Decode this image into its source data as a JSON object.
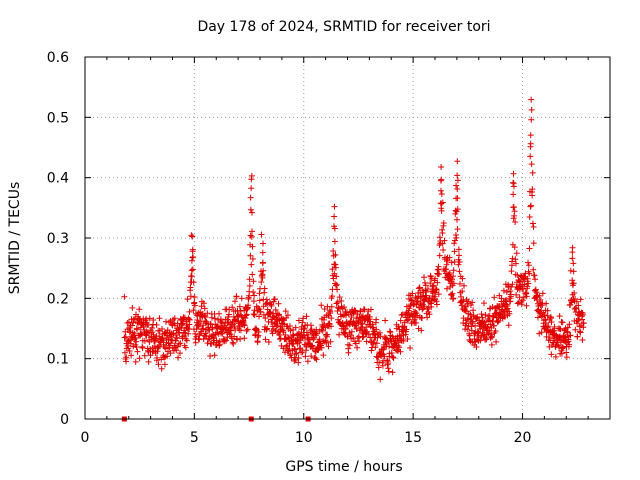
{
  "chart_data": {
    "type": "scatter",
    "title": "Day 178 of 2024, SRMTID for receiver tori",
    "xlabel": "GPS time / hours",
    "ylabel": "SRMTID / TECUs",
    "xlim": [
      0,
      24
    ],
    "ylim": [
      0,
      0.6
    ],
    "grid": true,
    "marker": "plus",
    "color": "#e00000",
    "x_ticks": [
      {
        "value": 0,
        "label": "0"
      },
      {
        "value": 5,
        "label": "5"
      },
      {
        "value": 10,
        "label": "10"
      },
      {
        "value": 15,
        "label": "15"
      },
      {
        "value": 20,
        "label": "20"
      }
    ],
    "y_ticks": [
      {
        "value": 0,
        "label": "0"
      },
      {
        "value": 0.1,
        "label": "0.1"
      },
      {
        "value": 0.2,
        "label": "0.2"
      },
      {
        "value": 0.3,
        "label": "0.3"
      },
      {
        "value": 0.4,
        "label": "0.4"
      },
      {
        "value": 0.5,
        "label": "0.5"
      },
      {
        "value": 0.6,
        "label": "0.6"
      }
    ],
    "zero_markers_x": [
      1.8,
      7.6,
      10.2
    ],
    "series": [
      {
        "name": "SRMTID",
        "x_range": [
          1.8,
          22.8
        ],
        "baseline_profile": [
          [
            1.8,
            0.13
          ],
          [
            2.5,
            0.15
          ],
          [
            3.0,
            0.13
          ],
          [
            3.5,
            0.12
          ],
          [
            4.0,
            0.13
          ],
          [
            4.5,
            0.15
          ],
          [
            5.0,
            0.15
          ],
          [
            5.5,
            0.16
          ],
          [
            6.0,
            0.14
          ],
          [
            6.5,
            0.15
          ],
          [
            7.0,
            0.17
          ],
          [
            7.5,
            0.17
          ],
          [
            8.0,
            0.15
          ],
          [
            8.5,
            0.17
          ],
          [
            9.0,
            0.15
          ],
          [
            9.5,
            0.12
          ],
          [
            10.0,
            0.14
          ],
          [
            10.5,
            0.12
          ],
          [
            11.0,
            0.15
          ],
          [
            11.5,
            0.18
          ],
          [
            12.0,
            0.15
          ],
          [
            12.5,
            0.16
          ],
          [
            13.0,
            0.15
          ],
          [
            13.5,
            0.11
          ],
          [
            14.0,
            0.11
          ],
          [
            14.5,
            0.15
          ],
          [
            15.0,
            0.18
          ],
          [
            15.5,
            0.2
          ],
          [
            16.0,
            0.21
          ],
          [
            16.5,
            0.25
          ],
          [
            17.0,
            0.22
          ],
          [
            17.5,
            0.16
          ],
          [
            18.0,
            0.15
          ],
          [
            18.5,
            0.16
          ],
          [
            19.0,
            0.18
          ],
          [
            19.5,
            0.2
          ],
          [
            20.0,
            0.22
          ],
          [
            20.5,
            0.22
          ],
          [
            21.0,
            0.16
          ],
          [
            21.5,
            0.13
          ],
          [
            22.0,
            0.14
          ],
          [
            22.5,
            0.16
          ],
          [
            22.8,
            0.16
          ]
        ],
        "peaks": [
          {
            "x": 4.9,
            "y": 0.31
          },
          {
            "x": 7.6,
            "y": 0.41
          },
          {
            "x": 8.1,
            "y": 0.3
          },
          {
            "x": 11.4,
            "y": 0.36
          },
          {
            "x": 16.3,
            "y": 0.42
          },
          {
            "x": 17.0,
            "y": 0.43
          },
          {
            "x": 19.6,
            "y": 0.4
          },
          {
            "x": 20.4,
            "y": 0.52
          },
          {
            "x": 22.3,
            "y": 0.29
          }
        ]
      }
    ]
  }
}
